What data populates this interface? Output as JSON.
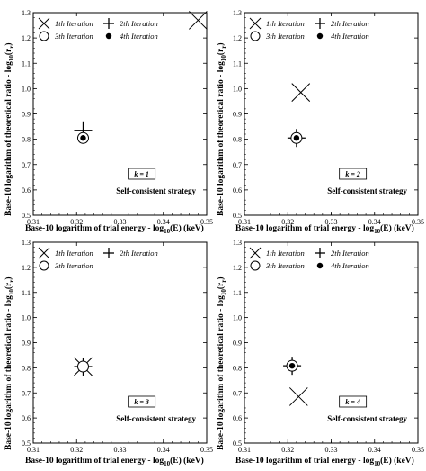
{
  "axes_labels": {
    "top_x": "Base-10 logarithm of trial energy - log",
    "top_x_sub": "10",
    "top_x_tail": "(E) (keV)",
    "bottom_x": "Base-10 logarithm of trial energy - log",
    "bottom_x_sub": "10",
    "bottom_x_tail": "(E) (keV)",
    "right_x": "Base-10 logarithm of trial energy - log",
    "right_x_sub": "10",
    "right_x_tail": "(E) (keV)",
    "y_top": "Base-10 logarithm of theoretical ratio - log",
    "y_top_sub": "10",
    "y_top_tail": "(r",
    "y_top_r": "r",
    "y_top_close": ")",
    "y_bottom": "Base-10 logarithm of theoretical ratio - log",
    "y_bottom_sub": "10",
    "y_bottom_tail": "(r",
    "y_bottom_r": "r",
    "y_bottom_close": ")"
  },
  "chart_data": [
    {
      "type": "scatter",
      "xlim": [
        0.31,
        0.35
      ],
      "ylim": [
        0.5,
        1.3
      ],
      "xticks": [
        "0.31",
        "0.32",
        "0.33",
        "0.34",
        "0.35"
      ],
      "yticks": [
        "0.5",
        "0.6",
        "0.7",
        "0.8",
        "0.9",
        "1.0",
        "1.1",
        "1.2",
        "1.3"
      ],
      "legend": [
        "1th Iteration",
        "2th Iteration",
        "3th Iteration",
        "4th Iteration"
      ],
      "k_label": "k = 1",
      "annotation": "Self-consistent strategy",
      "series": [
        {
          "name": "1th Iteration",
          "marker": "x",
          "points": [
            [
              0.348,
              1.27
            ]
          ]
        },
        {
          "name": "2th Iteration",
          "marker": "+",
          "points": [
            [
              0.3215,
              0.835
            ]
          ]
        },
        {
          "name": "3th Iteration",
          "marker": "o",
          "points": [
            [
              0.3215,
              0.805
            ]
          ]
        },
        {
          "name": "4th Iteration",
          "marker": "dot",
          "points": [
            [
              0.3215,
              0.805
            ]
          ]
        }
      ]
    },
    {
      "type": "scatter",
      "xlim": [
        0.31,
        0.35
      ],
      "ylim": [
        0.5,
        1.3
      ],
      "xticks": [
        "0.31",
        "0.32",
        "0.33",
        "0.34",
        "0.35"
      ],
      "yticks": [
        "0.5",
        "0.6",
        "0.7",
        "0.8",
        "0.9",
        "1.0",
        "1.1",
        "1.2",
        "1.3"
      ],
      "legend": [
        "1th Iteration",
        "2th Iteration",
        "3th Iteration",
        "4th Iteration"
      ],
      "k_label": "k = 2",
      "annotation": "Self-consistent strategy",
      "series": [
        {
          "name": "1th Iteration",
          "marker": "x",
          "points": [
            [
              0.323,
              0.985
            ]
          ]
        },
        {
          "name": "2th Iteration",
          "marker": "+",
          "points": [
            [
              0.322,
              0.805
            ]
          ]
        },
        {
          "name": "3th Iteration",
          "marker": "o",
          "points": [
            [
              0.322,
              0.805
            ]
          ]
        },
        {
          "name": "4th Iteration",
          "marker": "dot",
          "points": [
            [
              0.322,
              0.805
            ]
          ]
        }
      ]
    },
    {
      "type": "scatter",
      "xlim": [
        0.31,
        0.35
      ],
      "ylim": [
        0.5,
        1.3
      ],
      "xticks": [
        "0.31",
        "0.32",
        "0.33",
        "0.34",
        "0.35"
      ],
      "yticks": [
        "0.5",
        "0.6",
        "0.7",
        "0.8",
        "0.9",
        "1.0",
        "1.1",
        "1.2",
        "1.3"
      ],
      "legend": [
        "1th Iteration",
        "2th Iteration",
        "3th Iteration"
      ],
      "k_label": "k = 3",
      "annotation": "Self-consistent strategy",
      "series": [
        {
          "name": "1th Iteration",
          "marker": "x",
          "points": [
            [
              0.3215,
              0.805
            ]
          ]
        },
        {
          "name": "2th Iteration",
          "marker": "+",
          "points": [
            [
              0.3215,
              0.805
            ]
          ]
        },
        {
          "name": "3th Iteration",
          "marker": "o",
          "points": [
            [
              0.3215,
              0.805
            ]
          ]
        }
      ]
    },
    {
      "type": "scatter",
      "xlim": [
        0.31,
        0.35
      ],
      "ylim": [
        0.5,
        1.3
      ],
      "xticks": [
        "0.31",
        "0.32",
        "0.33",
        "0.34",
        "0.35"
      ],
      "yticks": [
        "0.5",
        "0.6",
        "0.7",
        "0.8",
        "0.9",
        "1.0",
        "1.1",
        "1.2",
        "1.3"
      ],
      "legend": [
        "1th Iteration",
        "2th Iteration",
        "3th Iteration",
        "4th Iteration"
      ],
      "k_label": "k = 4",
      "annotation": "Self-consistent strategy",
      "series": [
        {
          "name": "1th Iteration",
          "marker": "x",
          "points": [
            [
              0.3225,
              0.685
            ]
          ]
        },
        {
          "name": "2th Iteration",
          "marker": "+",
          "points": [
            [
              0.321,
              0.808
            ]
          ]
        },
        {
          "name": "3th Iteration",
          "marker": "o",
          "points": [
            [
              0.321,
              0.808
            ]
          ]
        },
        {
          "name": "4th Iteration",
          "marker": "dot",
          "points": [
            [
              0.321,
              0.808
            ]
          ]
        }
      ]
    }
  ]
}
